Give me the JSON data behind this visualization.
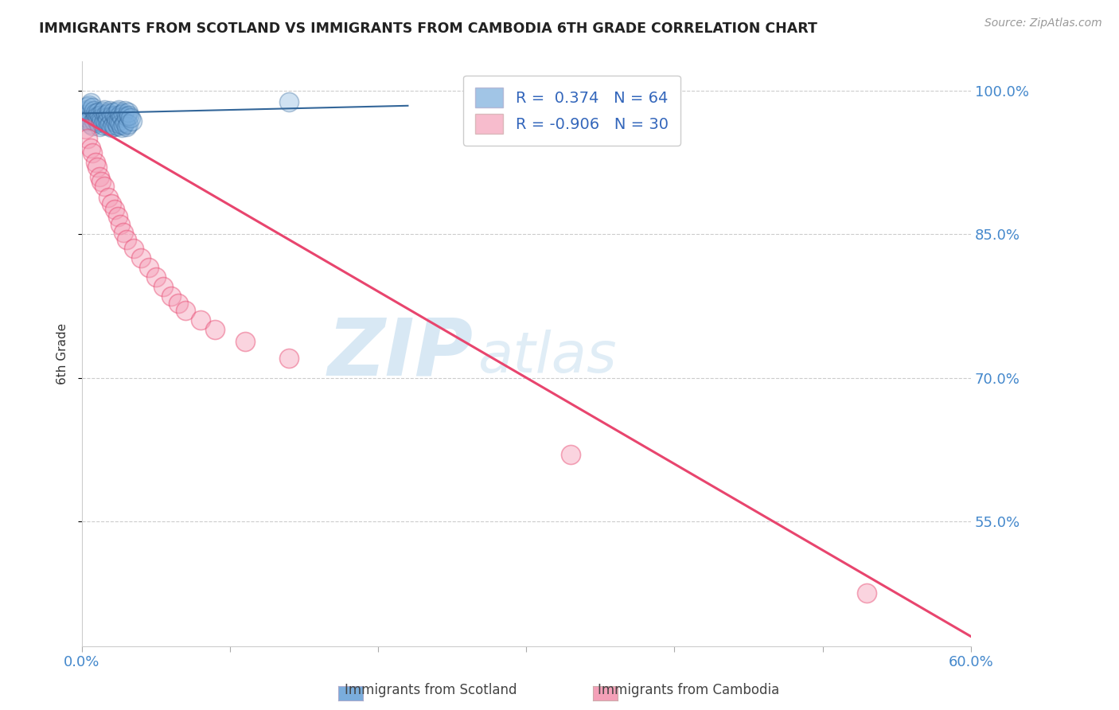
{
  "title": "IMMIGRANTS FROM SCOTLAND VS IMMIGRANTS FROM CAMBODIA 6TH GRADE CORRELATION CHART",
  "source": "Source: ZipAtlas.com",
  "ylabel": "6th Grade",
  "xlim": [
    0.0,
    0.6
  ],
  "ylim": [
    0.42,
    1.03
  ],
  "xticks": [
    0.0,
    0.1,
    0.2,
    0.3,
    0.4,
    0.5,
    0.6
  ],
  "xticklabels": [
    "0.0%",
    "",
    "",
    "",
    "",
    "",
    "60.0%"
  ],
  "yticks": [
    0.55,
    0.7,
    0.85,
    1.0
  ],
  "yticklabels": [
    "55.0%",
    "70.0%",
    "85.0%",
    "100.0%"
  ],
  "scotland_R": 0.374,
  "scotland_N": 64,
  "cambodia_R": -0.906,
  "cambodia_N": 30,
  "scotland_color": "#7aaddc",
  "cambodia_color": "#f4a0b8",
  "scotland_line_color": "#336699",
  "cambodia_line_color": "#e8456e",
  "watermark_zip": "ZIP",
  "watermark_atlas": "atlas",
  "background_color": "#ffffff",
  "grid_color": "#cccccc",
  "title_color": "#222222",
  "axis_label_color": "#333333",
  "tick_label_color": "#4488cc",
  "legend_color": "#3366bb",
  "scotland_points_x": [
    0.001,
    0.002,
    0.003,
    0.003,
    0.004,
    0.004,
    0.005,
    0.005,
    0.006,
    0.006,
    0.007,
    0.007,
    0.008,
    0.008,
    0.009,
    0.009,
    0.01,
    0.01,
    0.011,
    0.011,
    0.012,
    0.012,
    0.013,
    0.013,
    0.014,
    0.014,
    0.015,
    0.015,
    0.016,
    0.016,
    0.017,
    0.017,
    0.018,
    0.018,
    0.019,
    0.019,
    0.02,
    0.02,
    0.021,
    0.021,
    0.022,
    0.022,
    0.023,
    0.023,
    0.024,
    0.024,
    0.025,
    0.025,
    0.026,
    0.026,
    0.027,
    0.027,
    0.028,
    0.028,
    0.029,
    0.029,
    0.03,
    0.03,
    0.031,
    0.031,
    0.032,
    0.033,
    0.034,
    0.14
  ],
  "scotland_points_y": [
    0.978,
    0.975,
    0.98,
    0.972,
    0.983,
    0.968,
    0.985,
    0.97,
    0.987,
    0.965,
    0.982,
    0.963,
    0.979,
    0.968,
    0.976,
    0.971,
    0.973,
    0.969,
    0.977,
    0.966,
    0.974,
    0.962,
    0.971,
    0.967,
    0.978,
    0.964,
    0.98,
    0.969,
    0.975,
    0.966,
    0.972,
    0.968,
    0.976,
    0.963,
    0.979,
    0.965,
    0.973,
    0.961,
    0.977,
    0.964,
    0.974,
    0.962,
    0.971,
    0.966,
    0.978,
    0.963,
    0.98,
    0.968,
    0.975,
    0.965,
    0.972,
    0.961,
    0.976,
    0.964,
    0.979,
    0.966,
    0.973,
    0.962,
    0.977,
    0.965,
    0.974,
    0.971,
    0.968,
    0.988
  ],
  "cambodia_points_x": [
    0.002,
    0.004,
    0.006,
    0.007,
    0.009,
    0.01,
    0.012,
    0.013,
    0.015,
    0.018,
    0.02,
    0.022,
    0.024,
    0.026,
    0.028,
    0.03,
    0.035,
    0.04,
    0.045,
    0.05,
    0.055,
    0.06,
    0.065,
    0.07,
    0.08,
    0.09,
    0.11,
    0.14,
    0.33,
    0.53
  ],
  "cambodia_points_y": [
    0.96,
    0.95,
    0.94,
    0.935,
    0.925,
    0.92,
    0.91,
    0.905,
    0.9,
    0.888,
    0.882,
    0.876,
    0.868,
    0.86,
    0.852,
    0.844,
    0.835,
    0.825,
    0.815,
    0.805,
    0.795,
    0.785,
    0.778,
    0.77,
    0.76,
    0.75,
    0.738,
    0.72,
    0.62,
    0.475
  ],
  "camb_line_x0": 0.0,
  "camb_line_y0": 0.97,
  "camb_line_x1": 0.6,
  "camb_line_y1": 0.43,
  "scot_line_x0": 0.0,
  "scot_line_y0": 0.976,
  "scot_line_x1": 0.22,
  "scot_line_y1": 0.984
}
